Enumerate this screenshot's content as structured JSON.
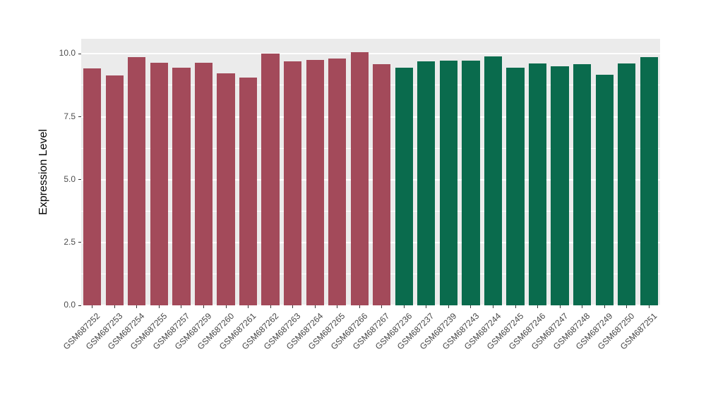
{
  "chart_data": {
    "type": "bar",
    "title": "",
    "xlabel": "",
    "ylabel": "Expression Level",
    "ylim": [
      0,
      10.6
    ],
    "yticks": [
      0,
      2.5,
      5,
      7.5,
      10
    ],
    "ytick_labels": [
      "0.0",
      "2.5",
      "5.0",
      "7.5",
      "10.0"
    ],
    "minor_yticks": [
      1.25,
      3.75,
      6.25,
      8.75
    ],
    "grid": true,
    "legend_position": "none",
    "categories": [
      "GSM687252",
      "GSM687253",
      "GSM687254",
      "GSM687255",
      "GSM687257",
      "GSM687259",
      "GSM687260",
      "GSM687261",
      "GSM687262",
      "GSM687263",
      "GSM687264",
      "GSM687265",
      "GSM687266",
      "GSM687267",
      "GSM687236",
      "GSM687237",
      "GSM687239",
      "GSM687243",
      "GSM687244",
      "GSM687245",
      "GSM687246",
      "GSM687247",
      "GSM687248",
      "GSM687249",
      "GSM687250",
      "GSM687251"
    ],
    "values": [
      9.41,
      9.15,
      9.86,
      9.66,
      9.44,
      9.66,
      9.22,
      9.05,
      10.0,
      9.71,
      9.77,
      9.82,
      10.08,
      9.6,
      9.46,
      9.69,
      9.74,
      9.74,
      9.9,
      9.44,
      9.62,
      9.52,
      9.58,
      9.18,
      9.62,
      9.88
    ],
    "groups": [
      "group1",
      "group1",
      "group1",
      "group1",
      "group1",
      "group1",
      "group1",
      "group1",
      "group1",
      "group1",
      "group1",
      "group1",
      "group1",
      "group1",
      "group2",
      "group2",
      "group2",
      "group2",
      "group2",
      "group2",
      "group2",
      "group2",
      "group2",
      "group2",
      "group2",
      "group2"
    ],
    "group_colors": {
      "group1": "#A34A5A",
      "group2": "#0A6B4D"
    },
    "panel_background": "#EBEBEB",
    "gridline_color": "#FFFFFF",
    "axis_text_color": "#4D4D4D",
    "bar_width_fraction": 0.8
  }
}
